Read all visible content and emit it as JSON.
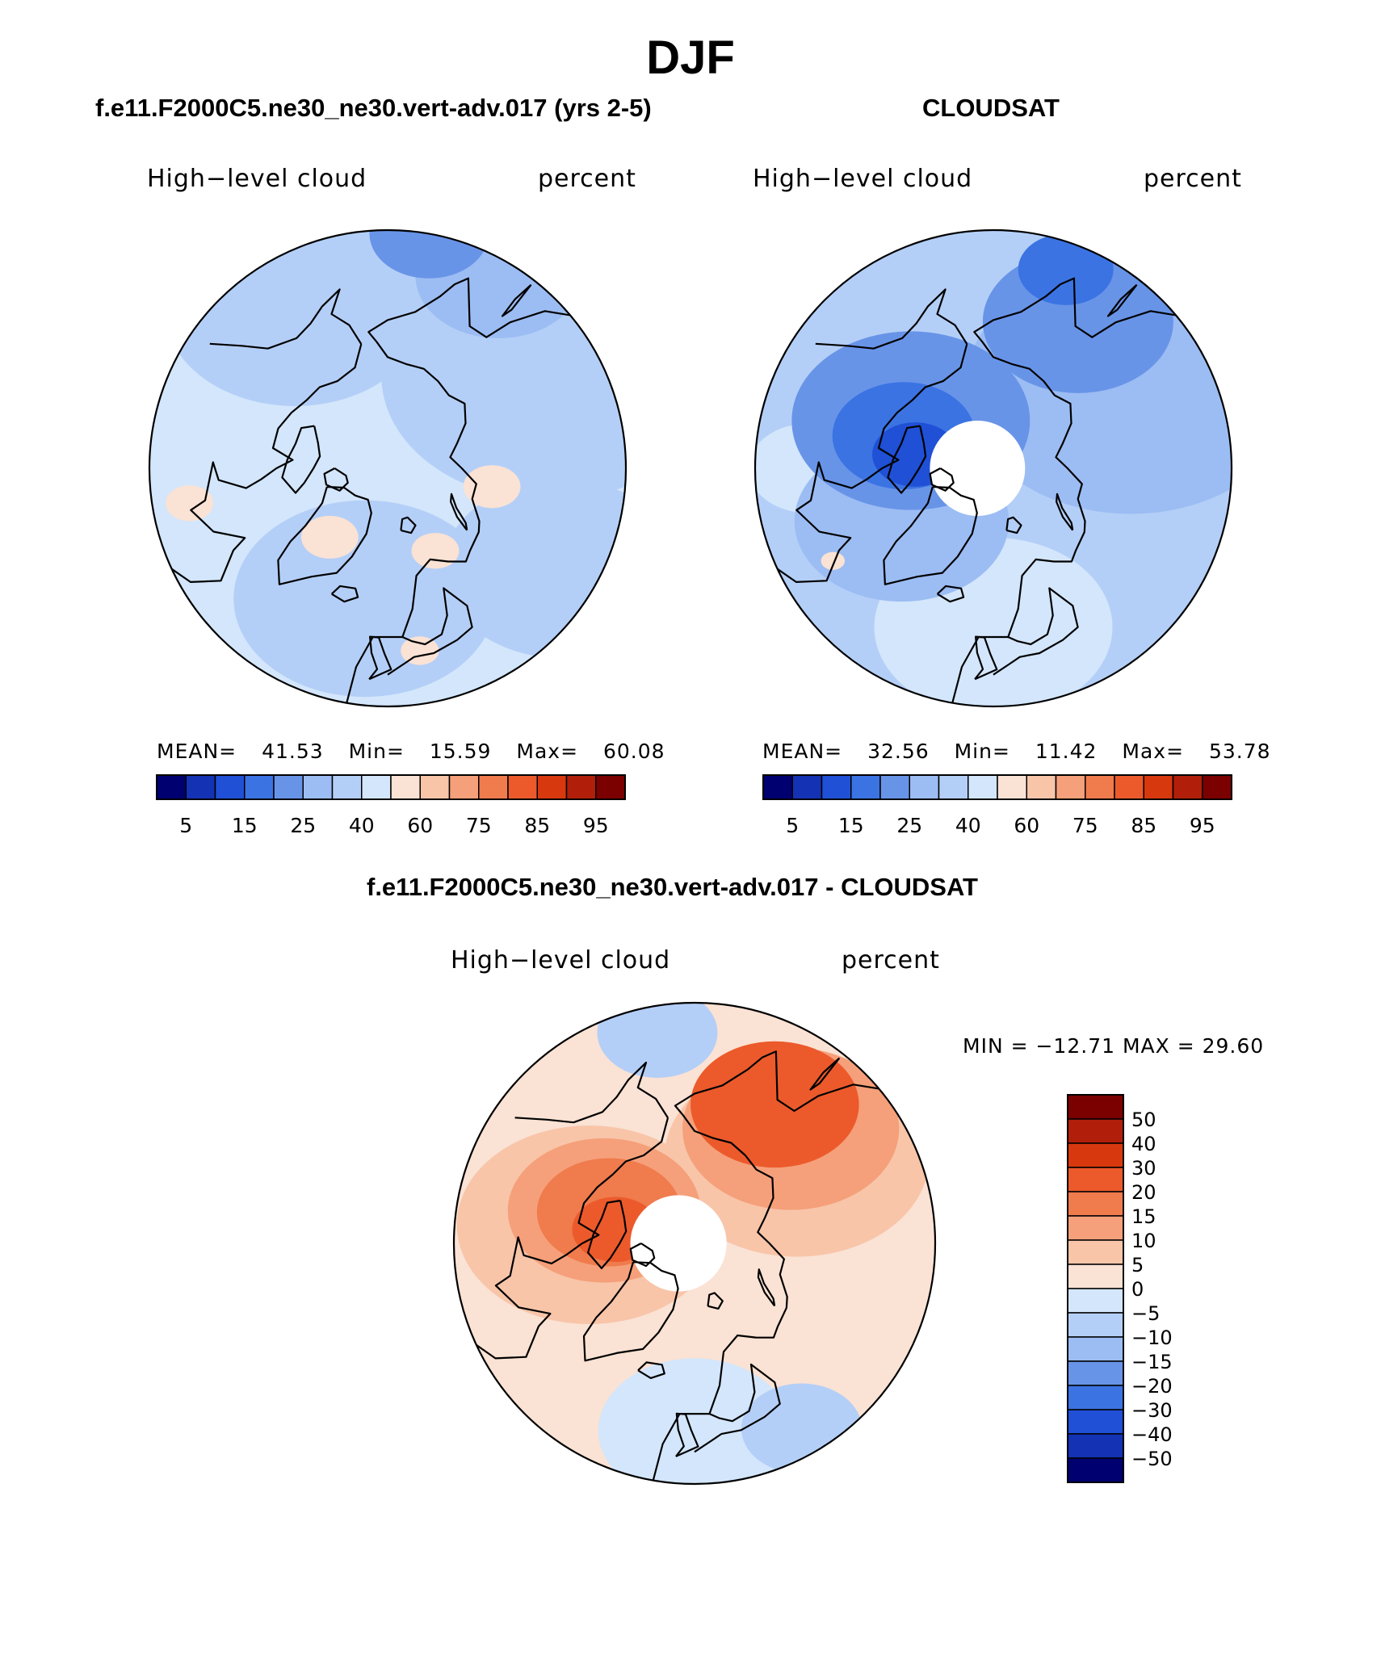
{
  "figure": {
    "main_title": "DJF",
    "panels": [
      {
        "id": "model",
        "title": "f.e11.F2000C5.ne30_ne30.vert-adv.017 (yrs 2-5)",
        "left_label": "High−level cloud",
        "right_label": "percent",
        "stats": {
          "mean_label": "MEAN=",
          "mean": "41.53",
          "min_label": "Min=",
          "min": "15.59",
          "max_label": "Max=",
          "max": "60.08"
        },
        "field": {
          "background": "#D3E6FB",
          "blobs": [
            {
              "lon": -10,
              "lat": 65,
              "r": 0.55,
              "color": "#B4CFF7"
            },
            {
              "lon": 120,
              "lat": 55,
              "r": 0.7,
              "color": "#B4CFF7"
            },
            {
              "lon": -150,
              "lat": 55,
              "r": 0.55,
              "color": "#B4CFF7"
            },
            {
              "lon": 60,
              "lat": 52,
              "r": 0.5,
              "color": "#B4CFF7"
            },
            {
              "lon": 150,
              "lat": 48,
              "r": 0.35,
              "color": "#9CBDF3"
            },
            {
              "lon": 170,
              "lat": 45,
              "r": 0.25,
              "color": "#6894E8"
            },
            {
              "lon": 80,
              "lat": 70,
              "r": 0.12,
              "color": "#FAE2D4"
            },
            {
              "lon": 30,
              "lat": 72,
              "r": 0.1,
              "color": "#FAE2D4"
            },
            {
              "lon": -40,
              "lat": 73,
              "r": 0.12,
              "color": "#FAE2D4"
            },
            {
              "lon": -80,
              "lat": 52,
              "r": 0.1,
              "color": "#FAE2D4"
            },
            {
              "lon": 10,
              "lat": 55,
              "r": 0.08,
              "color": "#FAE2D4"
            }
          ]
        }
      },
      {
        "id": "obs",
        "title": "CLOUDSAT",
        "left_label": "High−level cloud",
        "right_label": "percent",
        "stats": {
          "mean_label": "MEAN=",
          "mean": "32.56",
          "min_label": "Min=",
          "min": "11.42",
          "max_label": "Max=",
          "max": "53.78"
        },
        "field": {
          "background": "#B4CFF7",
          "blobs": [
            {
              "lon": 0,
              "lat": 60,
              "r": 0.5,
              "color": "#D3E6FB"
            },
            {
              "lon": -90,
              "lat": 55,
              "r": 0.25,
              "color": "#D3E6FB"
            },
            {
              "lon": -60,
              "lat": 70,
              "r": 0.45,
              "color": "#9CBDF3"
            },
            {
              "lon": 120,
              "lat": 60,
              "r": 0.7,
              "color": "#9CBDF3"
            },
            {
              "lon": -120,
              "lat": 72,
              "r": 0.5,
              "color": "#6894E8"
            },
            {
              "lon": 150,
              "lat": 58,
              "r": 0.4,
              "color": "#6894E8"
            },
            {
              "lon": -110,
              "lat": 72,
              "r": 0.3,
              "color": "#3B73E3"
            },
            {
              "lon": 160,
              "lat": 50,
              "r": 0.2,
              "color": "#3B73E3"
            },
            {
              "lon": -100,
              "lat": 75,
              "r": 0.18,
              "color": "#1F50D6"
            },
            {
              "lon": -60,
              "lat": 55,
              "r": 0.05,
              "color": "#FAE2D4"
            }
          ],
          "hole_radius_frac": 0.2
        }
      }
    ],
    "colorbar_horizontal": {
      "colors": [
        "#000070",
        "#1432B4",
        "#1F50D6",
        "#3B73E3",
        "#6894E8",
        "#9CBDF3",
        "#B4CFF7",
        "#D3E6FB",
        "#FAE2D4",
        "#F8C5A9",
        "#F5A07A",
        "#F07B4D",
        "#EC5A2C",
        "#D8380E",
        "#B11F0A",
        "#7B0000"
      ],
      "labels": [
        "5",
        "15",
        "25",
        "40",
        "60",
        "75",
        "85",
        "95"
      ]
    },
    "difference": {
      "title": "f.e11.F2000C5.ne30_ne30.vert-adv.017 - CLOUDSAT",
      "left_label": "High−level cloud",
      "right_label": "percent",
      "minmax": "MIN = −12.71  MAX =   29.60",
      "field": {
        "background": "#FAE2D4",
        "blobs": [
          {
            "lon": 0,
            "lat": 55,
            "r": 0.4,
            "color": "#D3E6FB"
          },
          {
            "lon": 30,
            "lat": 50,
            "r": 0.25,
            "color": "#B4CFF7"
          },
          {
            "lon": -170,
            "lat": 50,
            "r": 0.25,
            "color": "#B4CFF7"
          },
          {
            "lon": -100,
            "lat": 70,
            "r": 0.55,
            "color": "#F8C5A9"
          },
          {
            "lon": 130,
            "lat": 65,
            "r": 0.55,
            "color": "#F8C5A9"
          },
          {
            "lon": -110,
            "lat": 72,
            "r": 0.4,
            "color": "#F5A07A"
          },
          {
            "lon": 140,
            "lat": 62,
            "r": 0.45,
            "color": "#F5A07A"
          },
          {
            "lon": -110,
            "lat": 73,
            "r": 0.3,
            "color": "#F07B4D"
          },
          {
            "lon": 150,
            "lat": 60,
            "r": 0.35,
            "color": "#EC5A2C"
          },
          {
            "lon": -100,
            "lat": 75,
            "r": 0.18,
            "color": "#EC5A2C"
          }
        ],
        "hole_radius_frac": 0.2
      },
      "colorbar_vertical": {
        "colors_top_to_bottom": [
          "#7B0000",
          "#B11F0A",
          "#D8380E",
          "#EC5A2C",
          "#F07B4D",
          "#F5A07A",
          "#F8C5A9",
          "#FAE2D4",
          "#D3E6FB",
          "#B4CFF7",
          "#9CBDF3",
          "#6894E8",
          "#3B73E3",
          "#1F50D6",
          "#1432B4",
          "#000070"
        ],
        "labels_top_to_bottom": [
          "50",
          "40",
          "30",
          "20",
          "15",
          "10",
          "5",
          "0",
          "−5",
          "−10",
          "−15",
          "−20",
          "−30",
          "−40",
          "−50"
        ]
      }
    }
  }
}
